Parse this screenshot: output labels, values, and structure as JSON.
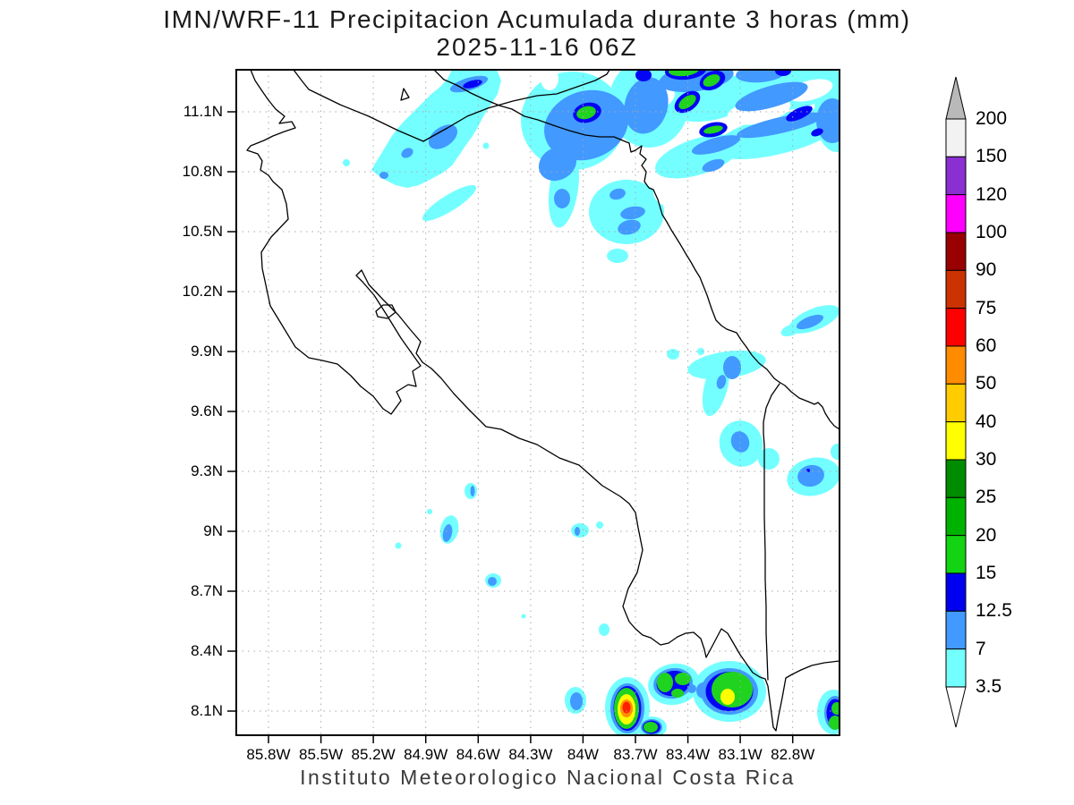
{
  "title": {
    "line1": "IMN/WRF-11 Precipitacion Acumulada durante 3 horas (mm)",
    "line2": "2025-11-16 06Z"
  },
  "footer": "Instituto Meteorologico Nacional Costa Rica",
  "axes": {
    "lat_labels": [
      "11.1N",
      "10.8N",
      "10.5N",
      "10.2N",
      "9.9N",
      "9.6N",
      "9.3N",
      "9N",
      "8.7N",
      "8.4N",
      "8.1N"
    ],
    "lon_labels": [
      "85.8W",
      "85.5W",
      "85.2W",
      "84.9W",
      "84.6W",
      "84.3W",
      "84W",
      "83.7W",
      "83.4W",
      "83.1W",
      "82.8W"
    ]
  },
  "colorbar": {
    "levels_top_to_bottom": [
      "200",
      "150",
      "120",
      "100",
      "90",
      "75",
      "60",
      "50",
      "40",
      "30",
      "25",
      "20",
      "15",
      "12.5",
      "7",
      "3.5"
    ],
    "segment_colors_top_to_bottom": [
      "#f2f2f2",
      "#8a2fd2",
      "#ff00ff",
      "#990000",
      "#cc3300",
      "#fe0000",
      "#ff8c00",
      "#ffcc00",
      "#ffff00",
      "#008c00",
      "#00b200",
      "#12d412",
      "#0000f0",
      "#4299ff",
      "#73ffff"
    ],
    "above_max_color": "#b9b9b9",
    "below_min_color": "#ffffff"
  },
  "map": {
    "coastline_color": "#000000",
    "grid_color": "#a8a8a8",
    "shading_colors": {
      "cyan": "#73ffff",
      "blue": "#4299ff",
      "dark_blue": "#0505f5",
      "green": "#1fd31f",
      "yellow": "#ffff00",
      "orange": "#ff9000",
      "red": "#ff1e00"
    }
  }
}
